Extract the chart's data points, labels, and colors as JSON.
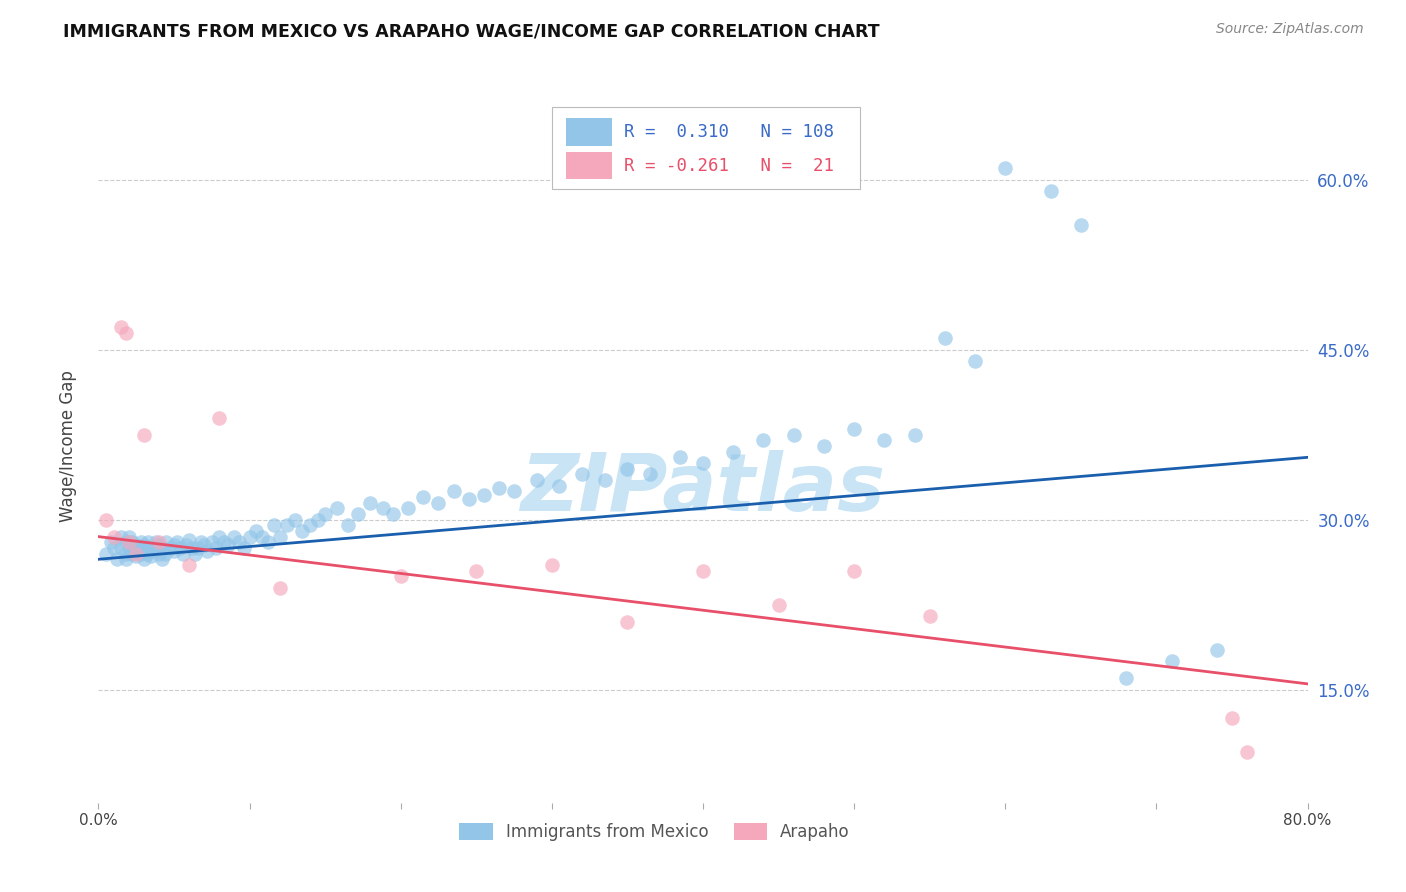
{
  "title": "IMMIGRANTS FROM MEXICO VS ARAPAHO WAGE/INCOME GAP CORRELATION CHART",
  "source": "Source: ZipAtlas.com",
  "ylabel": "Wage/Income Gap",
  "right_yticks": [
    0.15,
    0.3,
    0.45,
    0.6
  ],
  "right_yticklabels": [
    "15.0%",
    "30.0%",
    "45.0%",
    "60.0%"
  ],
  "xlim": [
    0.0,
    0.8
  ],
  "ylim": [
    0.05,
    0.68
  ],
  "legend_blue_R": "0.310",
  "legend_blue_N": "108",
  "legend_pink_R": "-0.261",
  "legend_pink_N": "21",
  "blue_scatter_color": "#92C5E8",
  "pink_scatter_color": "#F5A8BC",
  "blue_line_color": "#1A5FAD",
  "pink_line_color": "#E8506A",
  "scatter_alpha": 0.65,
  "scatter_size": 110,
  "blue_x": [
    0.005,
    0.008,
    0.01,
    0.012,
    0.015,
    0.015,
    0.018,
    0.018,
    0.018,
    0.02,
    0.02,
    0.02,
    0.022,
    0.022,
    0.022,
    0.025,
    0.025,
    0.025,
    0.027,
    0.028,
    0.028,
    0.03,
    0.03,
    0.03,
    0.032,
    0.032,
    0.033,
    0.035,
    0.035,
    0.037,
    0.038,
    0.04,
    0.04,
    0.042,
    0.042,
    0.044,
    0.045,
    0.048,
    0.05,
    0.05,
    0.052,
    0.054,
    0.056,
    0.058,
    0.06,
    0.062,
    0.064,
    0.066,
    0.068,
    0.07,
    0.072,
    0.075,
    0.078,
    0.08,
    0.083,
    0.086,
    0.09,
    0.093,
    0.096,
    0.1,
    0.104,
    0.108,
    0.112,
    0.116,
    0.12,
    0.125,
    0.13,
    0.135,
    0.14,
    0.145,
    0.15,
    0.158,
    0.165,
    0.172,
    0.18,
    0.188,
    0.195,
    0.205,
    0.215,
    0.225,
    0.235,
    0.245,
    0.255,
    0.265,
    0.275,
    0.29,
    0.305,
    0.32,
    0.335,
    0.35,
    0.365,
    0.385,
    0.4,
    0.42,
    0.44,
    0.46,
    0.48,
    0.5,
    0.52,
    0.54,
    0.56,
    0.58,
    0.6,
    0.63,
    0.65,
    0.68,
    0.71,
    0.74
  ],
  "blue_y": [
    0.27,
    0.28,
    0.275,
    0.265,
    0.285,
    0.275,
    0.27,
    0.28,
    0.265,
    0.275,
    0.28,
    0.285,
    0.275,
    0.27,
    0.28,
    0.278,
    0.272,
    0.268,
    0.275,
    0.27,
    0.28,
    0.272,
    0.278,
    0.265,
    0.27,
    0.275,
    0.28,
    0.272,
    0.268,
    0.275,
    0.28,
    0.27,
    0.278,
    0.275,
    0.265,
    0.27,
    0.28,
    0.275,
    0.272,
    0.278,
    0.28,
    0.275,
    0.27,
    0.278,
    0.282,
    0.275,
    0.27,
    0.275,
    0.28,
    0.278,
    0.272,
    0.28,
    0.275,
    0.285,
    0.28,
    0.278,
    0.285,
    0.28,
    0.275,
    0.285,
    0.29,
    0.285,
    0.28,
    0.295,
    0.285,
    0.295,
    0.3,
    0.29,
    0.295,
    0.3,
    0.305,
    0.31,
    0.295,
    0.305,
    0.315,
    0.31,
    0.305,
    0.31,
    0.32,
    0.315,
    0.325,
    0.318,
    0.322,
    0.328,
    0.325,
    0.335,
    0.33,
    0.34,
    0.335,
    0.345,
    0.34,
    0.355,
    0.35,
    0.36,
    0.37,
    0.375,
    0.365,
    0.38,
    0.37,
    0.375,
    0.46,
    0.44,
    0.61,
    0.59,
    0.56,
    0.16,
    0.175,
    0.185
  ],
  "pink_x": [
    0.005,
    0.01,
    0.015,
    0.018,
    0.02,
    0.025,
    0.03,
    0.04,
    0.06,
    0.08,
    0.12,
    0.2,
    0.25,
    0.3,
    0.35,
    0.4,
    0.45,
    0.5,
    0.55,
    0.75,
    0.76
  ],
  "pink_y": [
    0.3,
    0.285,
    0.47,
    0.465,
    0.28,
    0.27,
    0.375,
    0.28,
    0.26,
    0.39,
    0.24,
    0.25,
    0.255,
    0.26,
    0.21,
    0.255,
    0.225,
    0.255,
    0.215,
    0.125,
    0.095
  ],
  "watermark": "ZIPatlas",
  "watermark_color": "#C8E4F5",
  "legend_label_blue": "Immigrants from Mexico",
  "legend_label_pink": "Arapaho",
  "grid_color": "#CCCCCC",
  "grid_style": "--",
  "background_color": "#FFFFFF"
}
